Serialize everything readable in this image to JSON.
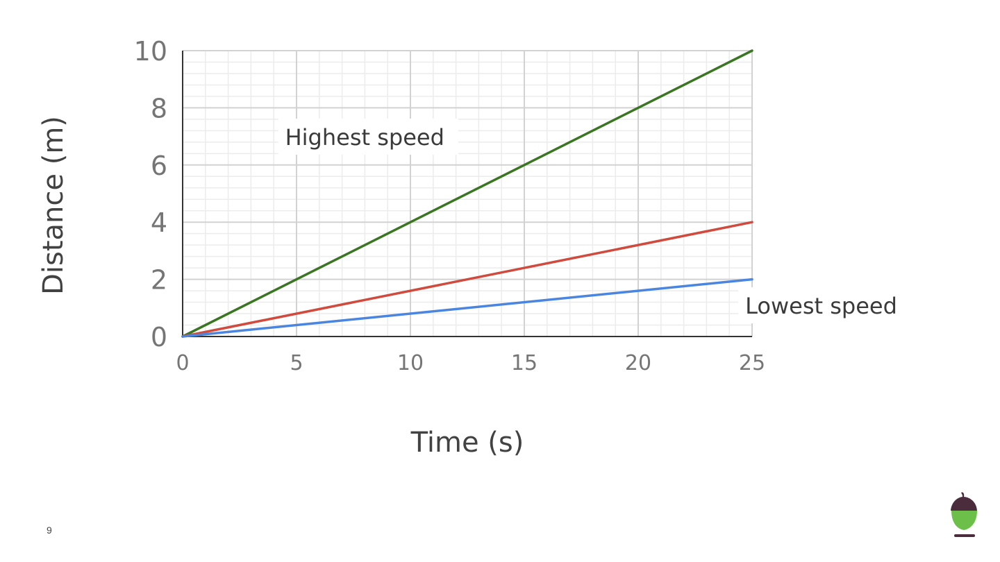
{
  "slide": {
    "page_number": "9"
  },
  "logo": {
    "icon": "acorn-icon",
    "cap_color": "#4a2c3d",
    "body_color": "#6cc04a",
    "base_color": "#4a2c3d"
  },
  "chart_data": {
    "type": "line",
    "title": "",
    "xlabel": "Time (s)",
    "ylabel": "Distance (m)",
    "xlim": [
      0,
      25
    ],
    "ylim": [
      0,
      10
    ],
    "x_ticks": [
      0,
      5,
      10,
      15,
      20,
      25
    ],
    "y_ticks": [
      0,
      2,
      4,
      6,
      8,
      10
    ],
    "x_tick_labels": [
      "0",
      "5",
      "10",
      "15",
      "20",
      "25"
    ],
    "y_tick_labels": [
      "0",
      "2",
      "4",
      "6",
      "8",
      "10"
    ],
    "grid": true,
    "minor_grid": true,
    "legend": "none",
    "series": [
      {
        "color": "#3a7622",
        "x": [
          0,
          25
        ],
        "y": [
          0,
          10
        ]
      },
      {
        "color": "#d04a3d",
        "x": [
          0,
          25
        ],
        "y": [
          0,
          4
        ]
      },
      {
        "color": "#4a86e0",
        "x": [
          0,
          25
        ],
        "y": [
          0,
          2
        ]
      }
    ],
    "annotations": [
      {
        "text": "Highest speed",
        "x": 4.5,
        "y": 6.7
      },
      {
        "text": "Lowest speed",
        "x": 24.7,
        "y": 0.8
      }
    ]
  }
}
